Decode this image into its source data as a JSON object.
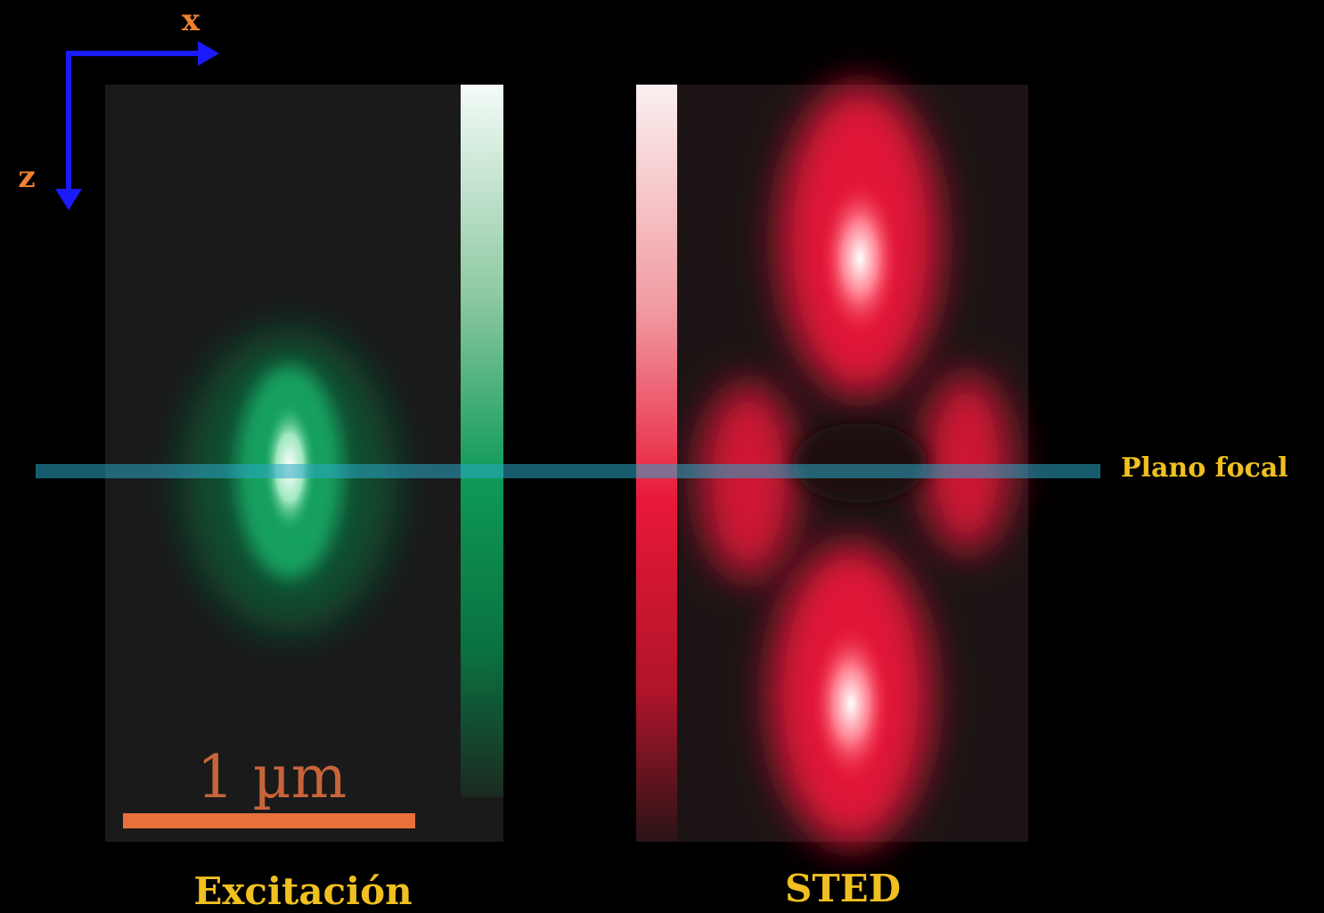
{
  "axes": {
    "x": "x",
    "z": "z"
  },
  "scale_bar": "1 µm",
  "focal_plane": "Plano focal",
  "panels": [
    {
      "label": "Excitación"
    },
    {
      "label": "STED"
    }
  ]
}
